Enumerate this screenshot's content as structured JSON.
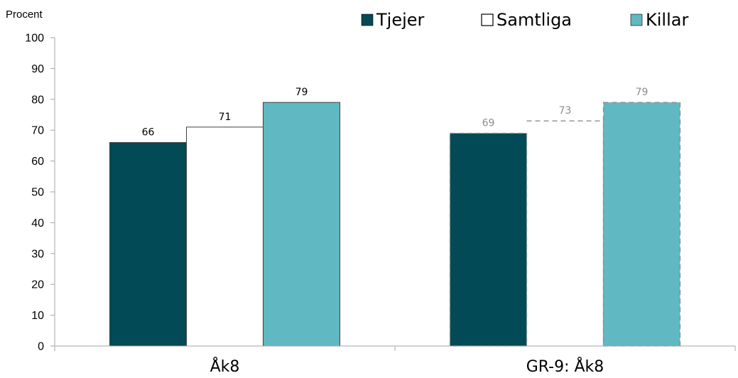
{
  "chart_data": {
    "type": "bar",
    "ylabel": "Procent",
    "ylim": [
      0,
      100
    ],
    "yticks": [
      0,
      10,
      20,
      30,
      40,
      50,
      60,
      70,
      80,
      90,
      100
    ],
    "grid": false,
    "legend_position": "top-right",
    "categories": [
      "Åk8",
      "GR-9: Åk8"
    ],
    "category_styles": [
      "solid",
      "dashed"
    ],
    "series": [
      {
        "name": "Tjejer",
        "values": [
          66,
          69
        ],
        "color": "#024a55",
        "legend_symbol": "■"
      },
      {
        "name": "Samtliga",
        "values": [
          71,
          73
        ],
        "color": "#ffffff",
        "legend_symbol": "□"
      },
      {
        "name": "Killar",
        "values": [
          79,
          79
        ],
        "color": "#5fb8c2",
        "legend_symbol": "■"
      }
    ]
  },
  "colors": {
    "axis": "#a6a6a6",
    "bar_outline": "#404040",
    "dashed_outline": "#8c8c8c",
    "label_solid": "#000000",
    "label_dashed": "#8c8c8c"
  }
}
